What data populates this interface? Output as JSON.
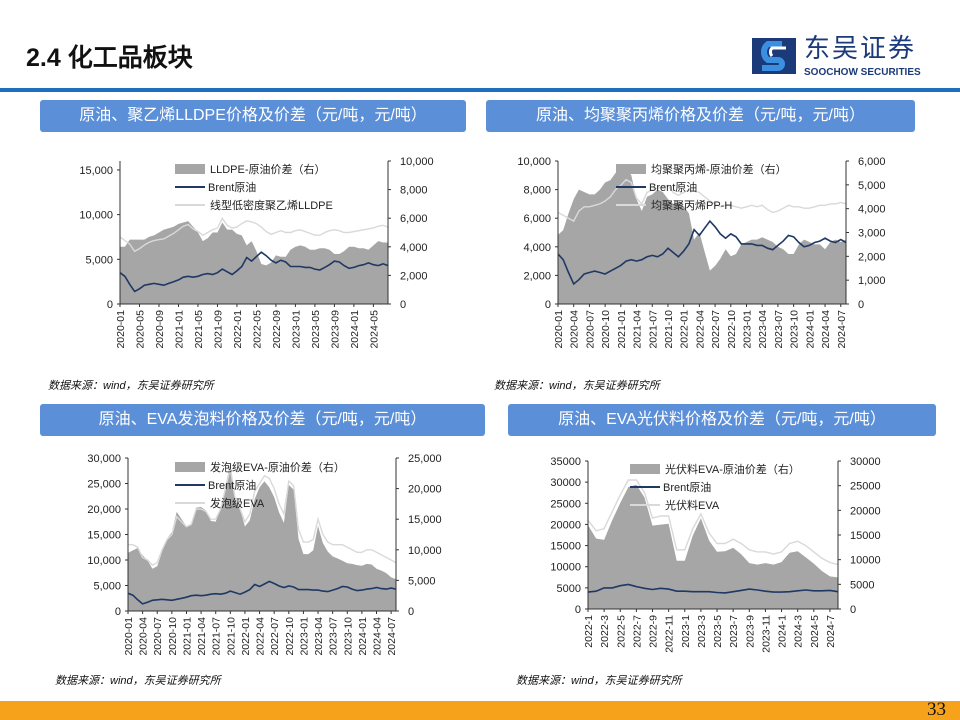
{
  "header": {
    "title": "2.4 化工品板块",
    "logo_cn": "东吴证券",
    "logo_en": "SOOCHOW SECURITIES"
  },
  "panels": [
    {
      "title": "原油、聚乙烯LLDPE价格及价差（元/吨，元/吨）",
      "source": "数据来源：wind，东吴证券研究所"
    },
    {
      "title": "原油、均聚聚丙烯价格及价差（元/吨，元/吨）",
      "source": "数据来源：wind，东吴证券研究所"
    },
    {
      "title": "原油、EVA发泡料价格及价差（元/吨，元/吨）",
      "source": "数据来源：wind，东吴证券研究所"
    },
    {
      "title": "原油、EVA光伏料价格及价差（元/吨，元/吨）",
      "source": "数据来源：wind，东吴证券研究所"
    }
  ],
  "footer": {
    "page_number": "33"
  },
  "colors": {
    "spread": "#a6a6a6",
    "brent": "#1f3864",
    "price": "#d9d9d9",
    "banner": "#5b8fd8",
    "footer": "#f7a21b"
  },
  "chart_data": [
    {
      "type": "area+line",
      "x_start": "2020-01",
      "x_end": "2024-08",
      "x_step": "month",
      "x_ticks": [
        "2020-01",
        "2020-05",
        "2020-09",
        "2021-01",
        "2021-05",
        "2021-09",
        "2022-01",
        "2022-05",
        "2022-09",
        "2023-01",
        "2023-05",
        "2023-09",
        "2024-01",
        "2024-05"
      ],
      "y_left": {
        "min": 0,
        "max": 16000,
        "ticks": [
          "0",
          "5,000",
          "10,000",
          "15,000"
        ]
      },
      "y_right": {
        "min": 0,
        "max": 10000,
        "ticks": [
          "0",
          "2,000",
          "4,000",
          "6,000",
          "8,000",
          "10,000"
        ]
      },
      "legend_position": "top",
      "series": [
        {
          "name": "LLDPE-原油价差（右）",
          "type": "area",
          "axis": "right",
          "values": [
            4000,
            4000,
            4500,
            4500,
            4500,
            4500,
            4700,
            4800,
            5000,
            5200,
            5300,
            5400,
            5600,
            5700,
            5800,
            5400,
            5000,
            4400,
            4600,
            5000,
            5000,
            5700,
            5200,
            5200,
            4900,
            4800,
            4100,
            4400,
            3700,
            2800,
            2700,
            2900,
            3400,
            3300,
            3300,
            3800,
            4000,
            4100,
            4000,
            3800,
            3800,
            3900,
            3900,
            3800,
            3500,
            3500,
            3700,
            4000,
            4000,
            3900,
            3900,
            3800,
            4100,
            4400,
            4300,
            4300
          ]
        },
        {
          "name": "Brent原油",
          "type": "line",
          "axis": "left",
          "values": [
            3500,
            3100,
            2200,
            1400,
            1700,
            2100,
            2200,
            2300,
            2200,
            2100,
            2300,
            2500,
            2700,
            3000,
            3100,
            3000,
            3100,
            3300,
            3400,
            3300,
            3500,
            3900,
            3600,
            3300,
            3700,
            4200,
            5200,
            4800,
            5300,
            5800,
            5400,
            4900,
            4600,
            4900,
            4700,
            4200,
            4200,
            4200,
            4100,
            4100,
            3900,
            3800,
            4100,
            4400,
            4800,
            4700,
            4300,
            4000,
            4100,
            4300,
            4400,
            4600,
            4400,
            4300,
            4500,
            4300
          ]
        },
        {
          "name": "线型低密度聚乙烯LLDPE",
          "type": "line",
          "axis": "left",
          "values": [
            7500,
            7100,
            6700,
            5900,
            6200,
            6600,
            6900,
            7100,
            7200,
            7300,
            7600,
            7900,
            8300,
            8700,
            8900,
            8400,
            8100,
            7700,
            8000,
            8300,
            8500,
            9600,
            8800,
            8500,
            8600,
            9000,
            9300,
            9200,
            9000,
            8600,
            8100,
            7800,
            8000,
            8200,
            8000,
            8000,
            8200,
            8300,
            8100,
            7900,
            7700,
            7700,
            8000,
            8200,
            8300,
            8200,
            8000,
            8000,
            8100,
            8200,
            8300,
            8400,
            8500,
            8700,
            8800,
            8600
          ]
        }
      ]
    },
    {
      "type": "area+line",
      "x_start": "2020-01",
      "x_end": "2024-08",
      "x_step": "month",
      "x_ticks": [
        "2020-01",
        "2020-04",
        "2020-07",
        "2020-10",
        "2021-01",
        "2021-04",
        "2021-07",
        "2021-10",
        "2022-01",
        "2022-04",
        "2022-07",
        "2022-10",
        "2023-01",
        "2023-04",
        "2023-07",
        "2023-10",
        "2024-01",
        "2024-04",
        "2024-07"
      ],
      "y_left": {
        "min": 0,
        "max": 10000,
        "ticks": [
          "0",
          "2,000",
          "4,000",
          "6,000",
          "8,000",
          "10,000"
        ]
      },
      "y_right": {
        "min": 0,
        "max": 6000,
        "ticks": [
          "0",
          "1,000",
          "2,000",
          "3,000",
          "4,000",
          "5,000",
          "6,000"
        ]
      },
      "legend_position": "top",
      "series": [
        {
          "name": "均聚聚丙烯-原油价差（右）",
          "type": "area",
          "axis": "right",
          "values": [
            2900,
            3100,
            3800,
            4400,
            4800,
            4700,
            4600,
            4600,
            4800,
            5100,
            5200,
            5500,
            5600,
            5700,
            5400,
            4400,
            3900,
            4500,
            4600,
            4800,
            4700,
            4400,
            4200,
            4300,
            4100,
            3800,
            2700,
            3000,
            2200,
            1400,
            1600,
            1900,
            2300,
            2000,
            2100,
            2500,
            2600,
            2700,
            2700,
            2800,
            2700,
            2600,
            2400,
            2300,
            2100,
            2100,
            2500,
            2700,
            2600,
            2500,
            2500,
            2300,
            2600,
            2700,
            2600,
            2700
          ]
        },
        {
          "name": "Brent原油",
          "type": "line",
          "axis": "left",
          "values": [
            3500,
            3100,
            2200,
            1400,
            1700,
            2100,
            2200,
            2300,
            2200,
            2100,
            2300,
            2500,
            2700,
            3000,
            3100,
            3000,
            3100,
            3300,
            3400,
            3300,
            3500,
            3900,
            3600,
            3300,
            3700,
            4200,
            5200,
            4800,
            5300,
            5800,
            5400,
            4900,
            4600,
            4900,
            4700,
            4200,
            4200,
            4200,
            4100,
            4100,
            3900,
            3800,
            4100,
            4400,
            4800,
            4700,
            4300,
            4000,
            4100,
            4300,
            4400,
            4600,
            4400,
            4300,
            4500,
            4300
          ]
        },
        {
          "name": "均聚聚丙烯PP-H",
          "type": "line",
          "axis": "left",
          "values": [
            6400,
            6200,
            6000,
            5800,
            6500,
            6800,
            6800,
            6900,
            7000,
            7200,
            7500,
            8000,
            8300,
            8700,
            8500,
            7400,
            7000,
            7800,
            8000,
            8100,
            8200,
            8300,
            7800,
            7600,
            7800,
            8000,
            7900,
            7800,
            7500,
            7200,
            7000,
            6800,
            6900,
            6900,
            6800,
            6700,
            6800,
            6900,
            6800,
            6900,
            6600,
            6400,
            6500,
            6700,
            6900,
            6800,
            6800,
            6700,
            6700,
            6800,
            6900,
            6900,
            7000,
            7000,
            7100,
            7000
          ]
        }
      ]
    },
    {
      "type": "area+line",
      "x_start": "2020-01",
      "x_end": "2024-08",
      "x_step": "month",
      "x_ticks": [
        "2020-01",
        "2020-04",
        "2020-07",
        "2020-10",
        "2021-01",
        "2021-04",
        "2021-07",
        "2021-10",
        "2022-01",
        "2022-04",
        "2022-07",
        "2022-10",
        "2023-01",
        "2023-04",
        "2023-07",
        "2023-10",
        "2024-01",
        "2024-04",
        "2024-07"
      ],
      "y_left": {
        "min": 0,
        "max": 30000,
        "ticks": [
          "0",
          "5,000",
          "10,000",
          "15,000",
          "20,000",
          "25,000",
          "30,000"
        ]
      },
      "y_right": {
        "min": 0,
        "max": 25000,
        "ticks": [
          "0",
          "5,000",
          "10,000",
          "15,000",
          "20,000",
          "25,000"
        ]
      },
      "legend_position": "top",
      "series": [
        {
          "name": "发泡级EVA-原油价差（右）",
          "type": "area",
          "axis": "right",
          "values": [
            9500,
            9900,
            10300,
            9100,
            8300,
            6900,
            7300,
            9700,
            11800,
            12900,
            16200,
            15000,
            13800,
            14000,
            16900,
            17000,
            16400,
            14700,
            14600,
            16700,
            20500,
            24100,
            18400,
            16700,
            13800,
            14800,
            18300,
            20200,
            21200,
            20200,
            18600,
            16100,
            14400,
            20600,
            19800,
            11800,
            9300,
            9300,
            9900,
            13900,
            11100,
            9700,
            8900,
            8600,
            8200,
            7800,
            7700,
            7500,
            7400,
            7700,
            7600,
            6900,
            6600,
            6200,
            5500,
            5200
          ]
        },
        {
          "name": "Brent原油",
          "type": "line",
          "axis": "left",
          "values": [
            3500,
            3100,
            2200,
            1400,
            1700,
            2100,
            2200,
            2300,
            2200,
            2100,
            2300,
            2500,
            2700,
            3000,
            3100,
            3000,
            3100,
            3300,
            3400,
            3300,
            3500,
            3900,
            3600,
            3300,
            3700,
            4200,
            5200,
            4800,
            5300,
            5800,
            5400,
            4900,
            4600,
            4900,
            4700,
            4200,
            4200,
            4200,
            4100,
            4100,
            3900,
            3800,
            4100,
            4400,
            4800,
            4700,
            4300,
            4000,
            4100,
            4300,
            4400,
            4600,
            4400,
            4300,
            4500,
            4300
          ]
        },
        {
          "name": "发泡级EVA",
          "type": "line",
          "axis": "left",
          "values": [
            13000,
            13000,
            12500,
            10500,
            10000,
            9000,
            9500,
            12000,
            14000,
            15000,
            18500,
            17500,
            16500,
            17000,
            20000,
            20000,
            19500,
            18000,
            18000,
            20000,
            24000,
            28000,
            22000,
            20000,
            17500,
            19000,
            23500,
            25000,
            26500,
            26000,
            24000,
            21000,
            19000,
            25500,
            24500,
            16000,
            13500,
            13500,
            14000,
            18000,
            15000,
            13500,
            13000,
            13000,
            13000,
            12500,
            12000,
            11500,
            11500,
            12000,
            12000,
            11500,
            11000,
            10500,
            10000,
            9500
          ]
        }
      ]
    },
    {
      "type": "area+line",
      "x_start": "2022-1",
      "x_end": "2024-8",
      "x_step": "month",
      "x_ticks": [
        "2022-1",
        "2022-3",
        "2022-5",
        "2022-7",
        "2022-9",
        "2022-11",
        "2023-1",
        "2023-3",
        "2023-5",
        "2023-7",
        "2023-9",
        "2023-11",
        "2024-1",
        "2024-3",
        "2024-5",
        "2024-7"
      ],
      "y_left": {
        "min": 0,
        "max": 35000,
        "ticks": [
          "0",
          "5000",
          "10000",
          "15000",
          "20000",
          "25000",
          "30000",
          "35000"
        ]
      },
      "y_right": {
        "min": 0,
        "max": 30000,
        "ticks": [
          "0",
          "5000",
          "10000",
          "15000",
          "20000",
          "25000",
          "30000"
        ]
      },
      "legend_position": "top",
      "series": [
        {
          "name": "光伏料EVA-原油价差（右）",
          "type": "area",
          "axis": "right",
          "values": [
            17000,
            14300,
            14000,
            18000,
            21500,
            24700,
            25200,
            22600,
            16900,
            17100,
            17300,
            9800,
            9800,
            14900,
            18400,
            13900,
            11600,
            11700,
            12400,
            11100,
            9300,
            9000,
            9300,
            9000,
            9500,
            11400,
            11700,
            10500,
            9200,
            7700,
            6600,
            6400
          ]
        },
        {
          "name": "Brent原油",
          "type": "line",
          "axis": "left",
          "values": [
            4000,
            4200,
            5000,
            5000,
            5500,
            5800,
            5300,
            4900,
            4600,
            4900,
            4700,
            4200,
            4200,
            4100,
            4100,
            4100,
            3900,
            3800,
            4100,
            4400,
            4700,
            4500,
            4200,
            4000,
            4000,
            4100,
            4300,
            4500,
            4300,
            4300,
            4400,
            4100
          ]
        },
        {
          "name": "光伏料EVA",
          "type": "line",
          "axis": "left",
          "values": [
            21000,
            18500,
            19000,
            23000,
            27000,
            30500,
            30500,
            27500,
            21500,
            22000,
            22000,
            14000,
            14000,
            19000,
            22500,
            18000,
            15500,
            15500,
            16500,
            15500,
            14000,
            13500,
            13500,
            13000,
            13500,
            15500,
            16000,
            15000,
            13500,
            12000,
            11000,
            10500
          ]
        }
      ]
    }
  ]
}
